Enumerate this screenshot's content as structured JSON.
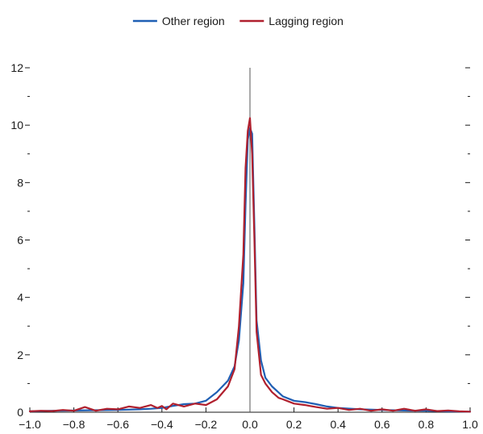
{
  "chart_data": {
    "type": "line",
    "title": "",
    "xlabel": "",
    "ylabel": "",
    "xlim": [
      -1.0,
      1.0
    ],
    "ylim": [
      0,
      12
    ],
    "x_ticks": [
      -1.0,
      -0.8,
      -0.6,
      -0.4,
      -0.2,
      0.0,
      0.2,
      0.4,
      0.6,
      0.8,
      1.0
    ],
    "x_tick_labels": [
      "−1.0",
      "−0.8",
      "−0.6",
      "−0.4",
      "−0.2",
      "0.0",
      "0.2",
      "0.4",
      "0.6",
      "0.8",
      "1.0"
    ],
    "y_ticks": [
      0,
      2,
      4,
      6,
      8,
      10,
      12
    ],
    "y_tick_labels": [
      "0",
      "2",
      "4",
      "6",
      "8",
      "10",
      "12"
    ],
    "grid": false,
    "vertical_reference_line_x": 0.0,
    "legend_position": "top-center",
    "series": [
      {
        "name": "Other region",
        "color": "#1f5fb4",
        "x": [
          -1.0,
          -0.9,
          -0.8,
          -0.7,
          -0.6,
          -0.5,
          -0.45,
          -0.4,
          -0.35,
          -0.3,
          -0.25,
          -0.2,
          -0.15,
          -0.1,
          -0.07,
          -0.05,
          -0.03,
          -0.02,
          -0.01,
          0.0,
          0.01,
          0.02,
          0.03,
          0.05,
          0.07,
          0.1,
          0.15,
          0.2,
          0.25,
          0.3,
          0.35,
          0.4,
          0.5,
          0.6,
          0.7,
          0.8,
          0.9,
          1.0
        ],
        "y": [
          0.03,
          0.05,
          0.06,
          0.07,
          0.08,
          0.1,
          0.12,
          0.15,
          0.22,
          0.28,
          0.3,
          0.4,
          0.7,
          1.1,
          1.6,
          2.5,
          4.5,
          7.2,
          9.5,
          9.9,
          9.7,
          6.5,
          3.2,
          1.8,
          1.2,
          0.9,
          0.55,
          0.4,
          0.35,
          0.28,
          0.2,
          0.15,
          0.1,
          0.08,
          0.06,
          0.05,
          0.03,
          0.02
        ]
      },
      {
        "name": "Lagging region",
        "color": "#b0202e",
        "x": [
          -1.0,
          -0.95,
          -0.9,
          -0.85,
          -0.8,
          -0.75,
          -0.7,
          -0.65,
          -0.6,
          -0.55,
          -0.5,
          -0.45,
          -0.42,
          -0.4,
          -0.38,
          -0.35,
          -0.3,
          -0.25,
          -0.2,
          -0.15,
          -0.1,
          -0.07,
          -0.05,
          -0.03,
          -0.02,
          -0.01,
          0.0,
          0.01,
          0.02,
          0.03,
          0.05,
          0.07,
          0.1,
          0.13,
          0.15,
          0.2,
          0.25,
          0.3,
          0.35,
          0.4,
          0.45,
          0.5,
          0.55,
          0.6,
          0.65,
          0.7,
          0.75,
          0.8,
          0.85,
          0.9,
          0.95,
          1.0
        ],
        "y": [
          0.03,
          0.05,
          0.04,
          0.08,
          0.05,
          0.18,
          0.05,
          0.12,
          0.1,
          0.2,
          0.15,
          0.25,
          0.15,
          0.22,
          0.1,
          0.3,
          0.2,
          0.3,
          0.25,
          0.45,
          0.9,
          1.5,
          3.0,
          5.5,
          8.5,
          9.8,
          10.25,
          9.0,
          6.0,
          2.8,
          1.3,
          1.0,
          0.7,
          0.5,
          0.45,
          0.3,
          0.25,
          0.18,
          0.12,
          0.15,
          0.08,
          0.12,
          0.05,
          0.1,
          0.05,
          0.12,
          0.05,
          0.1,
          0.04,
          0.06,
          0.03,
          0.02
        ]
      }
    ]
  }
}
